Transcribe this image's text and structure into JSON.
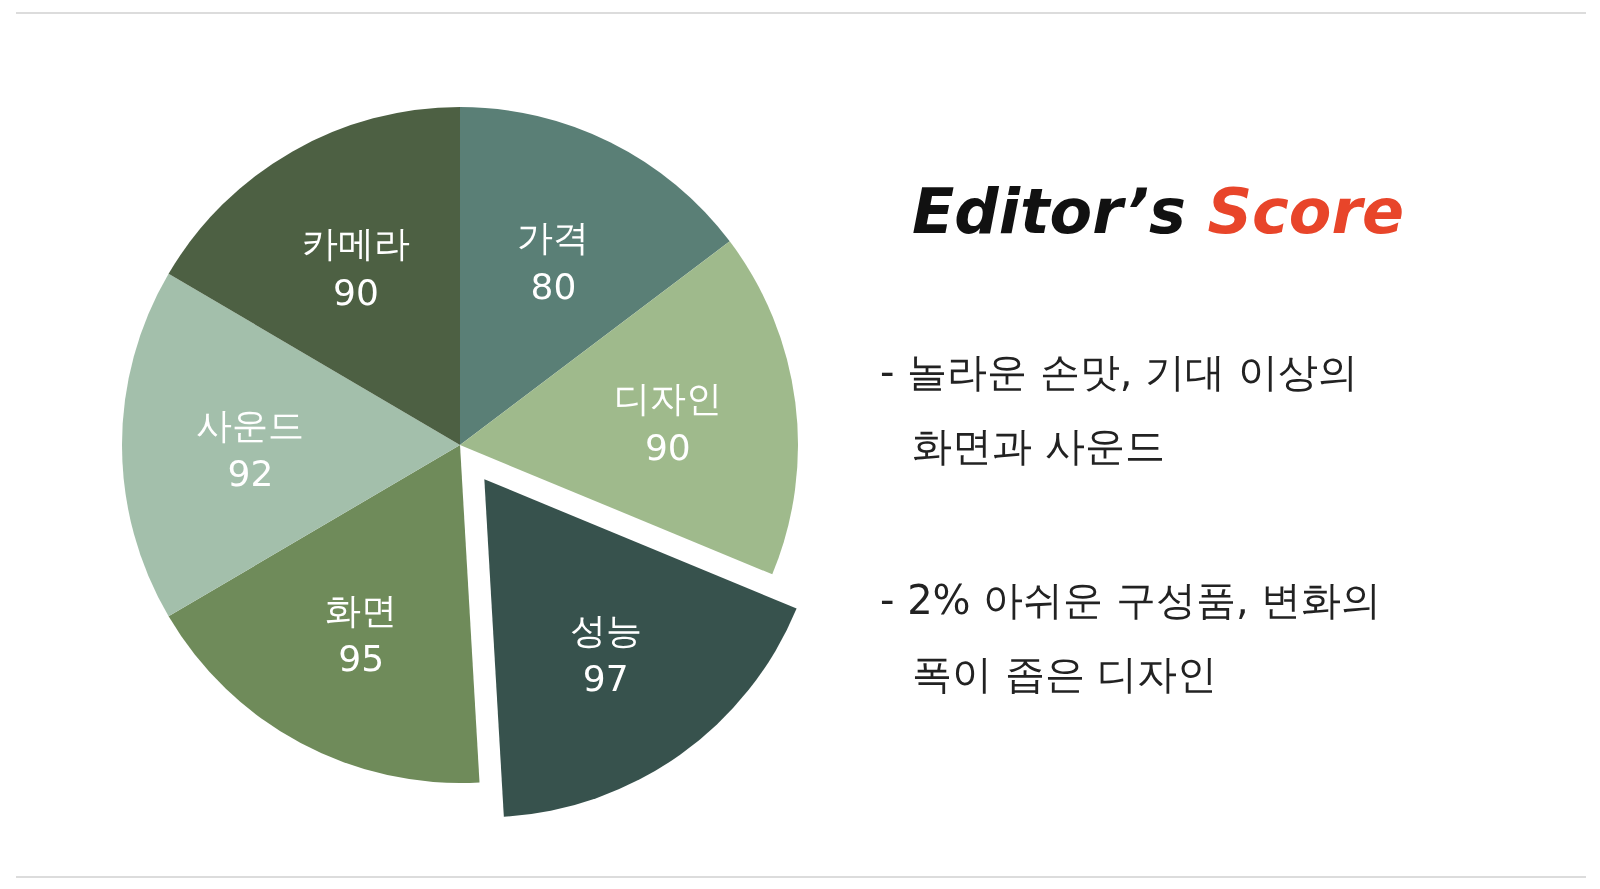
{
  "chart_data": {
    "type": "pie",
    "title": "Editor’s Score",
    "categories": [
      "가격",
      "디자인",
      "성능",
      "화면",
      "사운드",
      "카메라"
    ],
    "values": [
      80,
      90,
      97,
      95,
      92,
      90
    ],
    "colors": [
      "#5a7f76",
      "#9fba8c",
      "#37524d",
      "#6f8b5a",
      "#a3bfab",
      "#4d6043"
    ],
    "data_labels": true,
    "annotations": [
      "- 놀라운 손맛, 기대 이상의 화면과 사운드",
      "- 2% 아쉬운 구성품, 변화의 폭이 좁은 디자인"
    ]
  }
}
